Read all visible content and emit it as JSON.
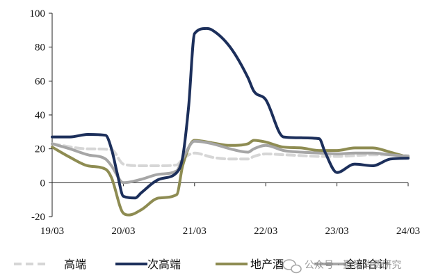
{
  "chart_data": {
    "type": "line",
    "title": "",
    "xlabel": "",
    "ylabel": "",
    "x_ticks": [
      "19/03",
      "20/03",
      "21/03",
      "22/03",
      "23/03",
      "24/03"
    ],
    "y_ticks": [
      -20,
      0,
      20,
      40,
      60,
      80,
      100
    ],
    "ylim": [
      -20,
      100
    ],
    "xlim": [
      "2019-03",
      "2024-03"
    ],
    "grid": false,
    "legend_position": "bottom",
    "series": [
      {
        "name": "高端",
        "color": "#d6d6d6",
        "style": "dashed",
        "x": [
          "2019-03",
          "2019-09",
          "2020-01",
          "2020-03",
          "2020-06",
          "2020-09",
          "2020-12",
          "2021-01",
          "2021-03",
          "2021-06",
          "2021-09",
          "2021-12",
          "2022-01",
          "2022-03",
          "2022-06",
          "2022-09",
          "2022-12",
          "2023-03",
          "2023-06",
          "2023-09",
          "2023-12",
          "2024-03"
        ],
        "y": [
          23,
          20,
          19.5,
          11,
          10,
          10,
          10.5,
          14,
          17.5,
          15,
          14,
          14,
          15.5,
          17,
          16.5,
          16,
          15.5,
          15.5,
          16,
          16.5,
          16.5,
          16
        ]
      },
      {
        "name": "次高端",
        "color": "#1c2f5b",
        "style": "solid",
        "x": [
          "2019-03",
          "2019-06",
          "2019-09",
          "2019-12",
          "2020-01",
          "2020-02",
          "2020-03",
          "2020-05",
          "2020-06",
          "2020-09",
          "2020-12",
          "2021-01",
          "2021-02",
          "2021-03",
          "2021-05",
          "2021-06",
          "2021-09",
          "2021-12",
          "2022-01",
          "2022-03",
          "2022-06",
          "2022-09",
          "2022-12",
          "2023-01",
          "2023-03",
          "2023-06",
          "2023-09",
          "2023-12",
          "2024-03"
        ],
        "y": [
          27,
          27,
          28.5,
          28,
          20,
          5,
          -8,
          -9,
          -6,
          2,
          6,
          15,
          45,
          88,
          91,
          90,
          80,
          62,
          54,
          49,
          27,
          26.5,
          26,
          18,
          6,
          11,
          10,
          14,
          14.5
        ]
      },
      {
        "name": "地产酒",
        "color": "#8e8c52",
        "style": "solid",
        "x": [
          "2019-03",
          "2019-06",
          "2019-09",
          "2019-12",
          "2020-01",
          "2020-03",
          "2020-04",
          "2020-06",
          "2020-09",
          "2020-12",
          "2021-01",
          "2021-03",
          "2021-06",
          "2021-09",
          "2021-12",
          "2022-01",
          "2022-03",
          "2022-06",
          "2022-09",
          "2022-12",
          "2023-03",
          "2023-06",
          "2023-09",
          "2023-12",
          "2024-03"
        ],
        "y": [
          21,
          15,
          10,
          8,
          3,
          -18,
          -19,
          -16,
          -9,
          -7,
          10,
          25,
          23.5,
          22,
          23,
          25,
          24,
          21,
          20.5,
          19,
          19,
          20.5,
          20.5,
          18,
          15
        ]
      },
      {
        "name": "全部合计",
        "color": "#a6a6a6",
        "style": "solid",
        "x": [
          "2019-03",
          "2019-06",
          "2019-09",
          "2019-12",
          "2020-01",
          "2020-03",
          "2020-06",
          "2020-09",
          "2020-12",
          "2021-01",
          "2021-03",
          "2021-06",
          "2021-09",
          "2021-12",
          "2022-01",
          "2022-03",
          "2022-06",
          "2022-09",
          "2022-12",
          "2023-03",
          "2023-06",
          "2023-09",
          "2023-12",
          "2024-03"
        ],
        "y": [
          23,
          20,
          16.5,
          14,
          10,
          0,
          2,
          5,
          7,
          14,
          24.5,
          23,
          20,
          18,
          20,
          22,
          19,
          18,
          17.5,
          17,
          17.5,
          17.5,
          16.5,
          15.5
        ]
      }
    ]
  },
  "watermark": {
    "text": "公众号 · 勤策消费研究",
    "icon": "wechat-icon"
  }
}
